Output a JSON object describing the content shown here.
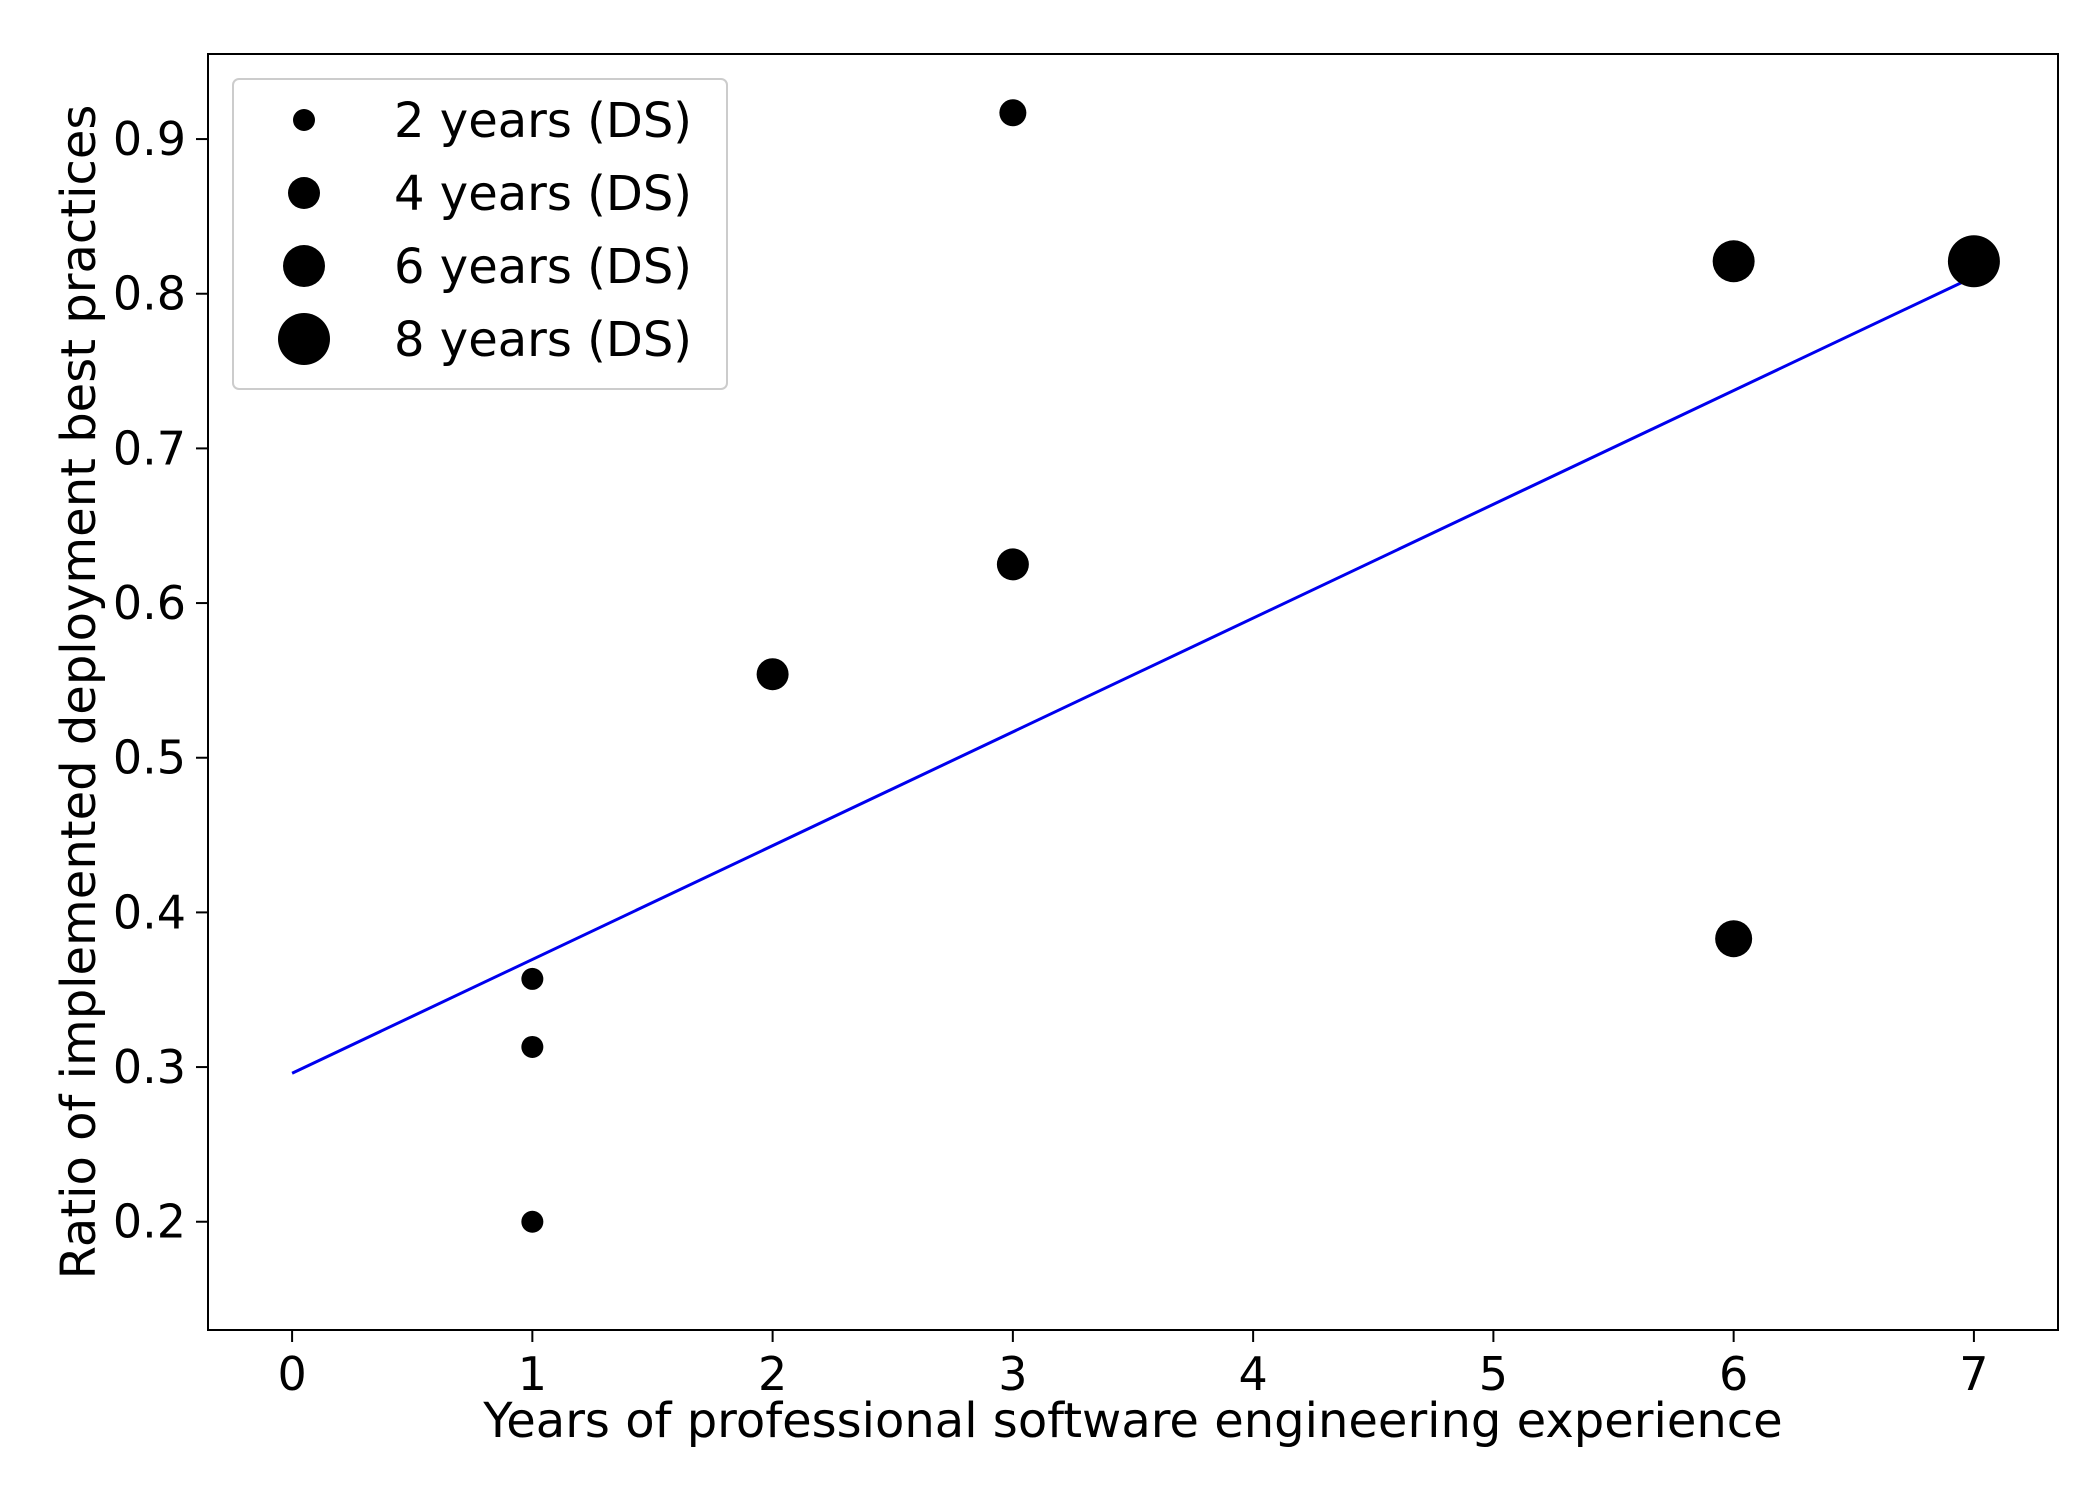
{
  "chart_data": {
    "type": "scatter",
    "title": "",
    "xlabel": "Years of professional software engineering experience",
    "ylabel": "Ratio of implemented deployment best practices",
    "xlim": [
      -0.35,
      7.35
    ],
    "ylim": [
      0.13,
      0.955
    ],
    "xticks": [
      0,
      1,
      2,
      3,
      4,
      5,
      6,
      7
    ],
    "xtick_labels": [
      "0",
      "1",
      "2",
      "3",
      "4",
      "5",
      "6",
      "7"
    ],
    "yticks": [
      0.2,
      0.3,
      0.4,
      0.5,
      0.6,
      0.7,
      0.8,
      0.9
    ],
    "ytick_labels": [
      "0.2",
      "0.3",
      "0.4",
      "0.5",
      "0.6",
      "0.7",
      "0.8",
      "0.9"
    ],
    "grid": false,
    "legend_position": "top-left",
    "marker_color": "#000000",
    "series": [
      {
        "kind": "points",
        "size_variable": "years (DS)",
        "points": [
          {
            "x": 1,
            "y": 0.357,
            "ds_years": 2
          },
          {
            "x": 1,
            "y": 0.313,
            "ds_years": 2
          },
          {
            "x": 1,
            "y": 0.2,
            "ds_years": 2
          },
          {
            "x": 2,
            "y": 0.554,
            "ds_years": 4
          },
          {
            "x": 3,
            "y": 0.917,
            "ds_years": 3
          },
          {
            "x": 3,
            "y": 0.625,
            "ds_years": 4
          },
          {
            "x": 6,
            "y": 0.821,
            "ds_years": 6
          },
          {
            "x": 6,
            "y": 0.383,
            "ds_years": 5
          },
          {
            "x": 7,
            "y": 0.821,
            "ds_years": 8
          }
        ]
      },
      {
        "kind": "trend-line",
        "color": "#0000ee",
        "points": [
          {
            "x": 0,
            "y": 0.296
          },
          {
            "x": 7,
            "y": 0.811
          }
        ]
      }
    ],
    "legend": [
      {
        "label": "2 years (DS)",
        "ds_years": 2
      },
      {
        "label": "4 years (DS)",
        "ds_years": 4
      },
      {
        "label": "6 years (DS)",
        "ds_years": 6
      },
      {
        "label": "8 years (DS)",
        "ds_years": 8
      }
    ]
  }
}
